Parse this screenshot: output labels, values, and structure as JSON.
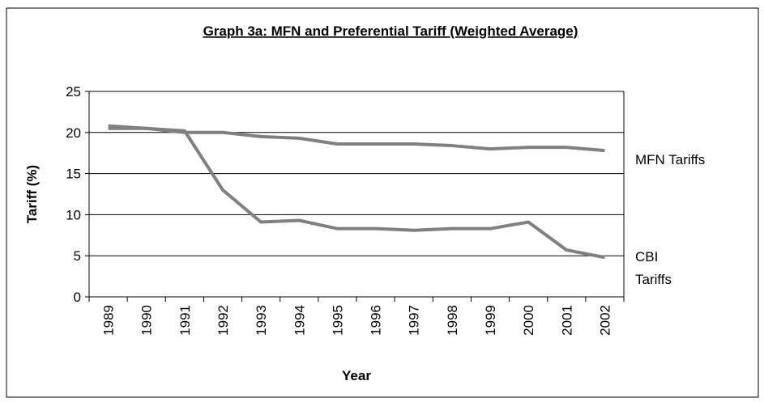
{
  "chart_data": {
    "type": "line",
    "title": "Graph 3a:  MFN and Preferential Tariff (Weighted Average)",
    "x_label": "Year",
    "y_label": "Tariff (%)",
    "categories": [
      "1989",
      "1990",
      "1991",
      "1992",
      "1993",
      "1994",
      "1995",
      "1996",
      "1997",
      "1998",
      "1999",
      "2000",
      "2001",
      "2002"
    ],
    "series": [
      {
        "name": "MFN Tariffs",
        "color": "#808080",
        "values": [
          20.5,
          20.5,
          20,
          20,
          19.5,
          19.3,
          18.6,
          18.6,
          18.6,
          18.4,
          18,
          18.2,
          18.2,
          17.8
        ]
      },
      {
        "name": "CBI Tariffs",
        "color": "#808080",
        "values": [
          20.8,
          20.5,
          20.2,
          13,
          9.1,
          9.3,
          8.3,
          8.3,
          8.1,
          8.3,
          8.3,
          9.1,
          5.7,
          4.8
        ]
      }
    ],
    "ylim": [
      0,
      25
    ],
    "yticks": [
      0,
      5,
      10,
      15,
      20,
      25
    ],
    "grid": true
  }
}
